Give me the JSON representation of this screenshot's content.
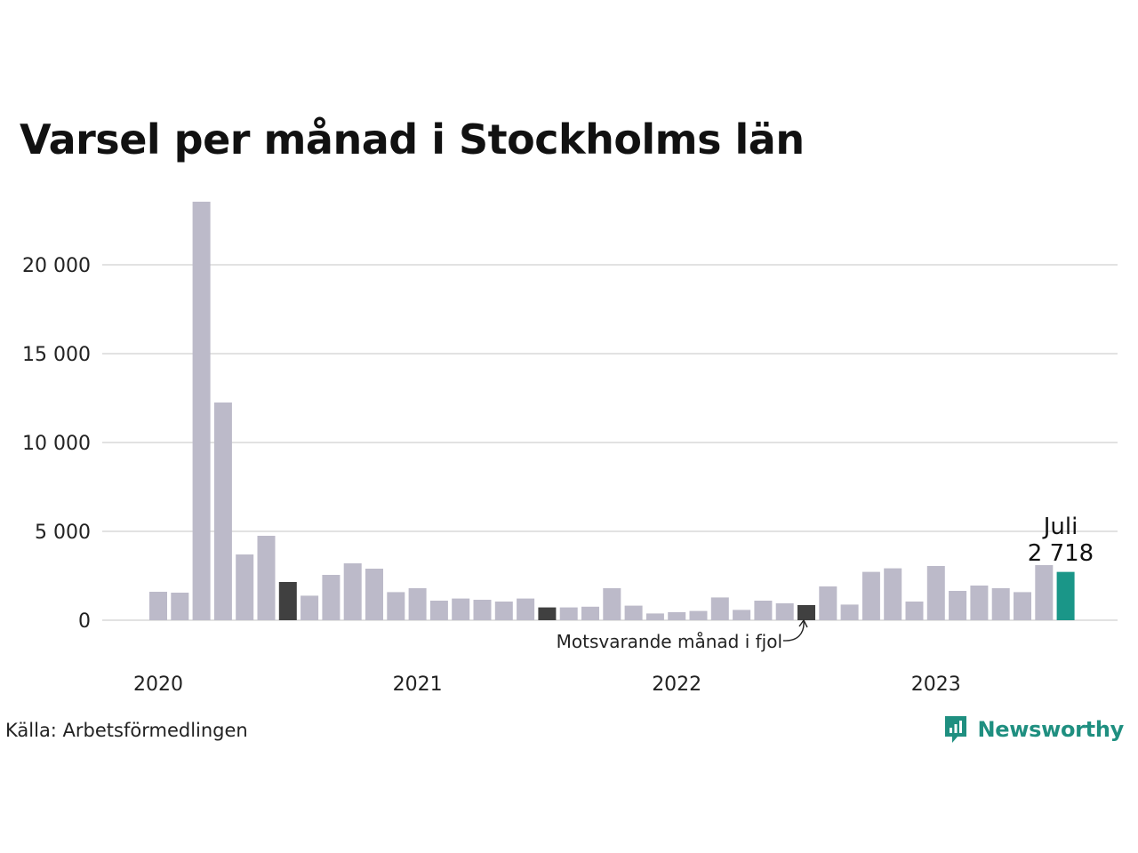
{
  "title": "Varsel per månad i Stockholms län",
  "source": "Källa: Arbetsförmedlingen",
  "brand": {
    "name": "Newsworthy",
    "icon": "newsworthy-logo-icon"
  },
  "colors": {
    "default": "#bcbac9",
    "previous_year": "#404040",
    "current": "#1a9688",
    "grid": "#e2e2e2"
  },
  "chart_data": {
    "type": "bar",
    "x": [
      "2020-01",
      "2020-02",
      "2020-03",
      "2020-04",
      "2020-05",
      "2020-06",
      "2020-07",
      "2020-08",
      "2020-09",
      "2020-10",
      "2020-11",
      "2020-12",
      "2021-01",
      "2021-02",
      "2021-03",
      "2021-04",
      "2021-05",
      "2021-06",
      "2021-07",
      "2021-08",
      "2021-09",
      "2021-10",
      "2021-11",
      "2021-12",
      "2022-01",
      "2022-02",
      "2022-03",
      "2022-04",
      "2022-05",
      "2022-06",
      "2022-07",
      "2022-08",
      "2022-09",
      "2022-10",
      "2022-11",
      "2022-12",
      "2023-01",
      "2023-02",
      "2023-03",
      "2023-04",
      "2023-05",
      "2023-06",
      "2023-07"
    ],
    "values": [
      1600,
      1550,
      23550,
      12250,
      3700,
      4750,
      2150,
      1380,
      2550,
      3200,
      2900,
      1580,
      1800,
      1100,
      1220,
      1150,
      1050,
      1220,
      720,
      720,
      760,
      1800,
      820,
      380,
      450,
      520,
      1280,
      580,
      1100,
      950,
      850,
      1900,
      880,
      2720,
      2920,
      1050,
      3050,
      1650,
      1950,
      1800,
      1580,
      3100,
      2718
    ],
    "highlight": {
      "previous_year": [
        "2020-07",
        "2021-07",
        "2022-07"
      ],
      "current": "2023-07"
    },
    "x_ticks": [
      "2020",
      "2021",
      "2022",
      "2023"
    ],
    "y_ticks": [
      "0",
      "5 000",
      "10 000",
      "15 000",
      "20 000"
    ],
    "ylim": [
      0,
      24000
    ],
    "grid": true,
    "annotations": {
      "current_month": "Juli",
      "current_value": "2 718",
      "previous_year_note": "Motsvarande månad i fjol"
    }
  }
}
